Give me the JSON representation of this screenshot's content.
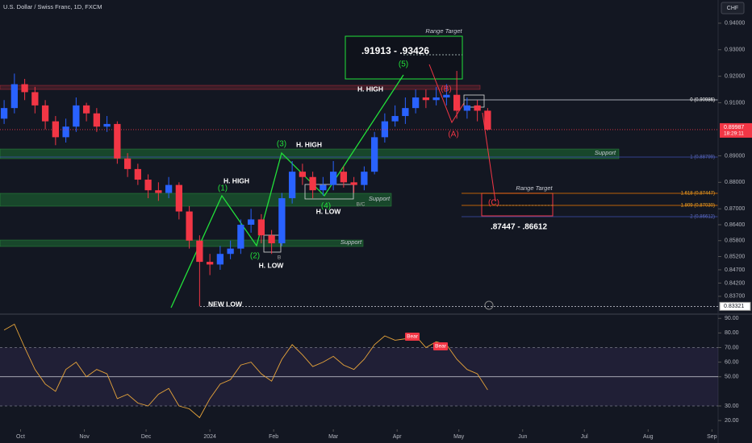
{
  "chart_data": [
    {
      "type": "candlestick",
      "title": "U.S. Dollar / Swiss Franc, 1D, FXCM",
      "currency": "CHF",
      "x": [
        -8,
        -3,
        2,
        7,
        12,
        17,
        22,
        27,
        32,
        37,
        42,
        47,
        52,
        57,
        62,
        67,
        72,
        77,
        82,
        87,
        92,
        97,
        102,
        107,
        112,
        117,
        122,
        127,
        132,
        137,
        142,
        147,
        152,
        157,
        162,
        167,
        172,
        177,
        182,
        187,
        192,
        197,
        202,
        207,
        212,
        217,
        222,
        227
      ],
      "open": [
        0.904,
        0.908,
        0.917,
        0.914,
        0.909,
        0.903,
        0.897,
        0.901,
        0.909,
        0.906,
        0.901,
        0.902,
        0.889,
        0.885,
        0.881,
        0.877,
        0.876,
        0.879,
        0.869,
        0.858,
        0.85,
        0.849,
        0.853,
        0.855,
        0.864,
        0.866,
        0.86,
        0.857,
        0.874,
        0.884,
        0.882,
        0.877,
        0.879,
        0.884,
        0.88,
        0.879,
        0.884,
        0.897,
        0.903,
        0.905,
        0.908,
        0.912,
        0.911,
        0.912,
        0.913,
        0.907,
        0.909,
        0.907
      ],
      "high": [
        0.911,
        0.921,
        0.919,
        0.916,
        0.911,
        0.905,
        0.904,
        0.912,
        0.91,
        0.908,
        0.905,
        0.903,
        0.891,
        0.887,
        0.883,
        0.88,
        0.882,
        0.88,
        0.871,
        0.86,
        0.853,
        0.856,
        0.858,
        0.866,
        0.87,
        0.868,
        0.862,
        0.876,
        0.888,
        0.887,
        0.884,
        0.882,
        0.888,
        0.886,
        0.882,
        0.886,
        0.899,
        0.906,
        0.909,
        0.912,
        0.915,
        0.915,
        0.916,
        0.917,
        0.922,
        0.912,
        0.911,
        0.908
      ],
      "low": [
        0.902,
        0.906,
        0.911,
        0.906,
        0.9,
        0.894,
        0.895,
        0.899,
        0.903,
        0.899,
        0.899,
        0.887,
        0.882,
        0.879,
        0.874,
        0.873,
        0.874,
        0.866,
        0.855,
        0.83321,
        0.845,
        0.847,
        0.851,
        0.853,
        0.861,
        0.857,
        0.853,
        0.856,
        0.872,
        0.879,
        0.874,
        0.875,
        0.877,
        0.878,
        0.876,
        0.877,
        0.883,
        0.895,
        0.901,
        0.902,
        0.906,
        0.908,
        0.909,
        0.909,
        0.904,
        0.904,
        0.903,
        0.8995
      ],
      "close": [
        0.908,
        0.917,
        0.914,
        0.909,
        0.903,
        0.897,
        0.901,
        0.909,
        0.906,
        0.901,
        0.902,
        0.889,
        0.885,
        0.881,
        0.877,
        0.876,
        0.879,
        0.869,
        0.858,
        0.85,
        0.849,
        0.853,
        0.855,
        0.864,
        0.866,
        0.86,
        0.857,
        0.874,
        0.884,
        0.882,
        0.877,
        0.879,
        0.884,
        0.88,
        0.879,
        0.884,
        0.897,
        0.903,
        0.905,
        0.908,
        0.912,
        0.911,
        0.912,
        0.913,
        0.907,
        0.909,
        0.907,
        0.89987
      ],
      "up_color": "#2962ff",
      "down_color": "#f23645",
      "xlim": [
        -10,
        339
      ],
      "xticks": [
        {
          "value": 0,
          "label": "Oct"
        },
        {
          "value": 31,
          "label": "Nov"
        },
        {
          "value": 61,
          "label": "Dec"
        },
        {
          "value": 92,
          "label": "2024"
        },
        {
          "value": 123,
          "label": "Feb"
        },
        {
          "value": 152,
          "label": "Mar"
        },
        {
          "value": 183,
          "label": "Apr"
        },
        {
          "value": 213,
          "label": "May"
        },
        {
          "value": 244,
          "label": "Jun"
        },
        {
          "value": 274,
          "label": "Jul"
        },
        {
          "value": 305,
          "label": "Aug"
        },
        {
          "value": 336,
          "label": "Sep"
        }
      ],
      "ylim": [
        0.8315,
        0.9445
      ],
      "yticks": [
        {
          "value": 0.94,
          "label": "0.94000"
        },
        {
          "value": 0.93,
          "label": "0.93000"
        },
        {
          "value": 0.92,
          "label": "0.92000"
        },
        {
          "value": 0.91,
          "label": "0.91000"
        },
        {
          "value": 0.89,
          "label": "0.89000"
        },
        {
          "value": 0.88,
          "label": "0.88000"
        },
        {
          "value": 0.87,
          "label": "0.87000"
        },
        {
          "value": 0.864,
          "label": "0.86400"
        },
        {
          "value": 0.858,
          "label": "0.85800"
        },
        {
          "value": 0.852,
          "label": "0.85200"
        },
        {
          "value": 0.847,
          "label": "0.84700"
        },
        {
          "value": 0.842,
          "label": "0.84200"
        },
        {
          "value": 0.837,
          "label": "0.83700"
        }
      ],
      "last_price": {
        "value": 0.89987,
        "label": "0.89987"
      },
      "countdown": "18:29:11",
      "low_price": {
        "value": 0.83321,
        "label": "0.83321"
      },
      "annotations": [
        "H. HIGH",
        "H. HIGH",
        "H. HIGH",
        "H. LOW",
        "H. LOW",
        "NEW LOW",
        "(1)",
        "(2)",
        "(3)",
        "(4)",
        "(5)",
        "(A)",
        "(B)",
        "(C)",
        "B",
        "B/C",
        "Support",
        "Support",
        "Support",
        "Range Target",
        "Range Target",
        ".91913 - .93426",
        ".87447 - .86612",
        "0 (0.90986)",
        "1 (0.88799)",
        "1.618 (0.87447)",
        "1.809 (0.87030)",
        "2 (0.86612)"
      ]
    },
    {
      "type": "line",
      "x": [
        -8,
        -3,
        2,
        7,
        12,
        17,
        22,
        27,
        32,
        37,
        42,
        47,
        52,
        57,
        62,
        67,
        72,
        77,
        82,
        87,
        92,
        97,
        102,
        107,
        112,
        117,
        122,
        127,
        132,
        137,
        142,
        147,
        152,
        157,
        162,
        167,
        172,
        177,
        182,
        187,
        192,
        197,
        202,
        207,
        212,
        217,
        222,
        227
      ],
      "values": [
        82,
        86,
        70,
        55,
        45,
        40,
        55,
        60,
        50,
        55,
        52,
        35,
        38,
        32,
        30,
        38,
        42,
        30,
        28,
        22,
        35,
        45,
        48,
        58,
        60,
        52,
        47,
        62,
        72,
        65,
        57,
        60,
        64,
        58,
        55,
        62,
        72,
        78,
        75,
        76,
        78,
        70,
        74,
        72,
        62,
        55,
        52,
        41
      ],
      "color": "#e8a53a",
      "xlim": [
        -10,
        339
      ],
      "ylim": [
        14,
        94
      ],
      "yticks": [
        {
          "value": 90,
          "label": "90.00"
        },
        {
          "value": 80,
          "label": "80.00"
        },
        {
          "value": 70,
          "label": "70.00"
        },
        {
          "value": 60,
          "label": "60.00"
        },
        {
          "value": 50,
          "label": "50.00"
        },
        {
          "value": 30,
          "label": "30.00"
        },
        {
          "value": 20,
          "label": "20.00"
        }
      ],
      "levels": [
        70,
        50,
        30
      ],
      "annotations": [
        "Bear",
        "Bear"
      ]
    }
  ]
}
